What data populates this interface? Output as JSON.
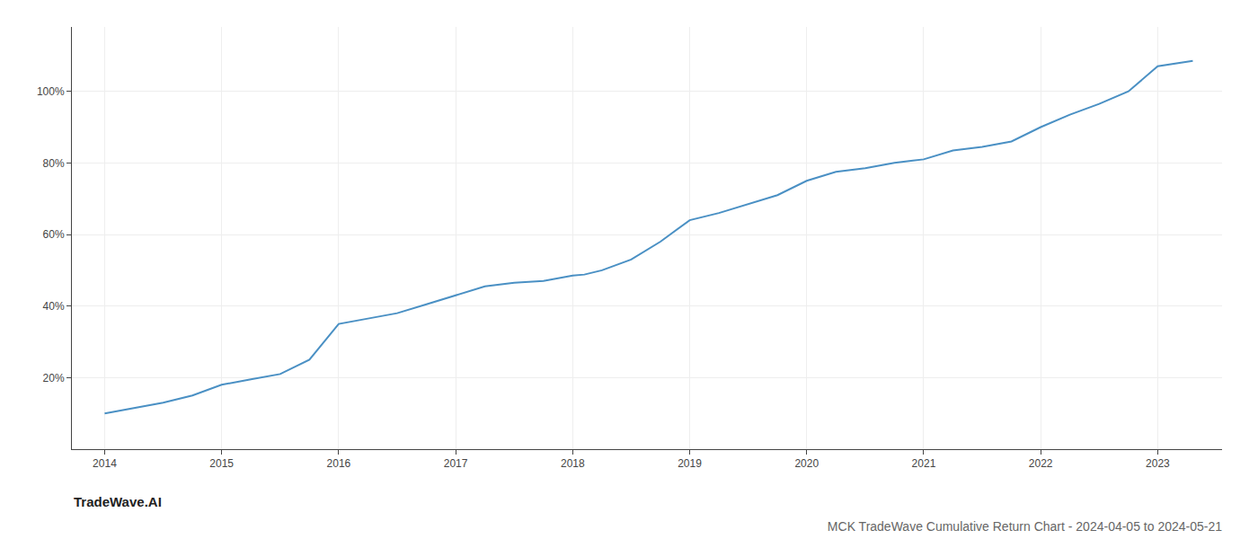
{
  "chart_data": {
    "type": "line",
    "title": "MCK TradeWave Cumulative Return Chart - 2024-04-05 to 2024-05-21",
    "annotations": [
      "TradeWave.AI"
    ],
    "color": "#4a90c4",
    "grid": true,
    "x": [
      2014.0,
      2014.25,
      2014.5,
      2014.75,
      2015.0,
      2015.25,
      2015.5,
      2015.75,
      2016.0,
      2016.25,
      2016.5,
      2016.75,
      2017.0,
      2017.1,
      2017.25,
      2017.5,
      2017.75,
      2018.0,
      2018.1,
      2018.25,
      2018.5,
      2018.75,
      2019.0,
      2019.25,
      2019.5,
      2019.75,
      2020.0,
      2020.25,
      2020.5,
      2020.75,
      2021.0,
      2021.25,
      2021.5,
      2021.75,
      2022.0,
      2022.25,
      2022.5,
      2022.75,
      2023.0,
      2023.3
    ],
    "values": [
      10.0,
      11.5,
      13.0,
      15.0,
      18.0,
      19.5,
      21.0,
      25.0,
      35.0,
      36.5,
      38.0,
      40.5,
      43.0,
      44.0,
      45.5,
      46.5,
      47.0,
      48.5,
      48.8,
      50.0,
      53.0,
      58.0,
      64.0,
      66.0,
      68.5,
      71.0,
      75.0,
      77.5,
      78.5,
      80.0,
      81.0,
      83.5,
      84.5,
      86.0,
      90.0,
      93.5,
      96.5,
      100.0,
      107.0,
      108.5
    ],
    "xlim": [
      2013.72,
      2023.55
    ],
    "ylim": [
      0,
      118
    ],
    "xticks": [
      2014,
      2015,
      2016,
      2017,
      2018,
      2019,
      2020,
      2021,
      2022,
      2023
    ],
    "yticks": [
      {
        "value": 20,
        "label": "20%"
      },
      {
        "value": 40,
        "label": "40%"
      },
      {
        "value": 60,
        "label": "60%"
      },
      {
        "value": 80,
        "label": "80%"
      },
      {
        "value": 100,
        "label": "100%"
      }
    ]
  }
}
